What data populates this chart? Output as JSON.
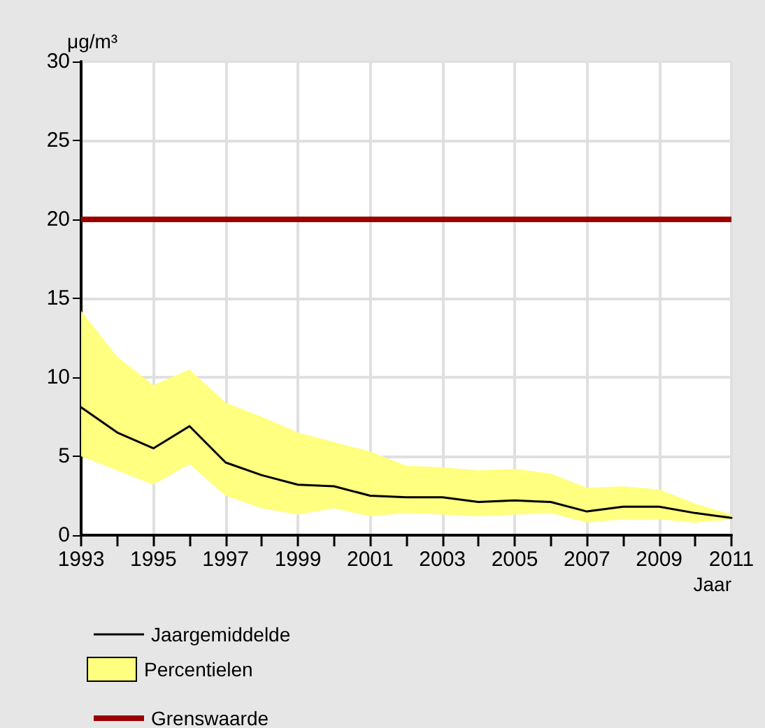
{
  "chart_data": {
    "type": "line",
    "ylabel": "μg/m³",
    "xlabel": "Jaar",
    "x": [
      1993,
      1994,
      1995,
      1996,
      1997,
      1998,
      1999,
      2000,
      2001,
      2002,
      2003,
      2004,
      2005,
      2006,
      2007,
      2008,
      2009,
      2010,
      2011
    ],
    "series": [
      {
        "name": "Jaargemiddelde",
        "type": "line",
        "color": "#000000",
        "values": [
          8.1,
          6.5,
          5.5,
          6.9,
          4.6,
          3.8,
          3.2,
          3.1,
          2.5,
          2.4,
          2.4,
          2.1,
          2.2,
          2.1,
          1.5,
          1.8,
          1.8,
          1.4,
          1.1
        ],
        "lower": [
          5.0,
          4.1,
          3.2,
          4.5,
          2.5,
          1.7,
          1.3,
          1.7,
          1.2,
          1.4,
          1.3,
          1.2,
          1.3,
          1.4,
          0.8,
          1.0,
          1.0,
          0.8,
          1.0
        ],
        "upper": [
          14.2,
          11.3,
          9.5,
          10.5,
          8.4,
          7.5,
          6.5,
          5.9,
          5.3,
          4.4,
          4.3,
          4.1,
          4.2,
          3.9,
          3.0,
          3.1,
          2.9,
          2.0,
          1.3
        ]
      }
    ],
    "annotations": [
      "Percentielen"
    ],
    "ref_lines": [
      {
        "axis": "y",
        "value": 20,
        "label": "Grenswaarde",
        "color": "#9b0000"
      }
    ],
    "xlim": [
      1993,
      2011
    ],
    "xticks": [
      1993,
      {
        "value": 1994,
        "label": null
      },
      1995,
      {
        "value": 1996,
        "label": null
      },
      1997,
      {
        "value": 1998,
        "label": null
      },
      1999,
      {
        "value": 2000,
        "label": null
      },
      2001,
      {
        "value": 2002,
        "label": null
      },
      2003,
      {
        "value": 2004,
        "label": null
      },
      2005,
      {
        "value": 2006,
        "label": null
      },
      2007,
      {
        "value": 2008,
        "label": null
      },
      2009,
      {
        "value": 2010,
        "label": null
      },
      2011
    ],
    "ylim": [
      0,
      30
    ],
    "yticks": [
      0,
      5,
      10,
      15,
      20,
      25,
      30
    ],
    "grid": true,
    "legend": "bottom",
    "marker": "none",
    "line_style": "solid"
  }
}
